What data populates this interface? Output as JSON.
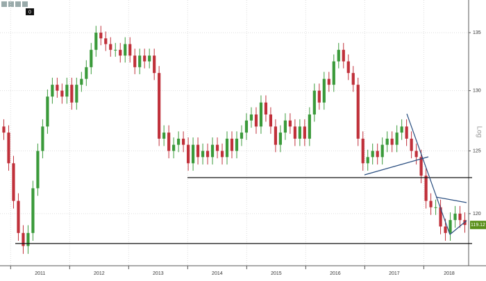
{
  "toolbar": {
    "badge": "0"
  },
  "chart_data": {
    "type": "candlestick",
    "y_label": "Log",
    "log_scale": true,
    "grid": true,
    "up_color": "#3a9a3a",
    "down_color": "#c0303a",
    "last_value": 119.12,
    "last_color": "#5a8f1a",
    "xlim": [
      2010.82,
      2018.76
    ],
    "xticks": [
      2011,
      2012,
      2013,
      2014,
      2015,
      2016,
      2017,
      2018
    ],
    "ylim": [
      116,
      137.9
    ],
    "yticks": [
      120,
      125,
      130,
      135
    ],
    "open": [
      127,
      126.5,
      124,
      121,
      118.5,
      117.5,
      118.5,
      122,
      125,
      127,
      129.5,
      130.5,
      130,
      129.5,
      130.5,
      129,
      130.5,
      131,
      132,
      133.5,
      135,
      134.5,
      134,
      133.5,
      133.5,
      133,
      134,
      133,
      132,
      133,
      132.5,
      133,
      131.5,
      126,
      126.5,
      125,
      125.5,
      126,
      125.5,
      124,
      125.5,
      124.5,
      125,
      124.5,
      125.5,
      125,
      124.5,
      126,
      125,
      126,
      126.5,
      127.5,
      128,
      127,
      129,
      128,
      127,
      125.5,
      126.5,
      127.5,
      127,
      126,
      127,
      126,
      128,
      130,
      129,
      131,
      130.5,
      132.5,
      133.5,
      132.5,
      131.5,
      130.5,
      126,
      124,
      124.5,
      125,
      124.5,
      125.5,
      126,
      125.5,
      126.5,
      127,
      126,
      125,
      124.5,
      123,
      121,
      120.5,
      120.5,
      119,
      118.5,
      119.5,
      120,
      119.5
    ],
    "high": [
      127.6,
      127.1,
      124.6,
      121.6,
      119.1,
      119.1,
      122.6,
      125.6,
      127.6,
      130.1,
      131.1,
      131.1,
      130.6,
      131.1,
      131.1,
      131.1,
      131.6,
      132.6,
      134.1,
      135.6,
      135.6,
      135.1,
      134.6,
      134.1,
      134.1,
      134.6,
      134.6,
      133.6,
      133.6,
      133.6,
      133.6,
      133.6,
      132.1,
      127.1,
      127.1,
      126.1,
      126.6,
      126.6,
      126.1,
      126.1,
      126.1,
      125.6,
      125.6,
      126.1,
      126.1,
      125.6,
      126.6,
      126.6,
      126.6,
      127.1,
      128.1,
      128.6,
      128.6,
      129.6,
      129.6,
      128.6,
      127.6,
      127.1,
      128.1,
      128.1,
      127.6,
      127.6,
      127.6,
      128.6,
      130.6,
      130.6,
      131.6,
      131.6,
      133.1,
      134.1,
      134.1,
      133.1,
      132.1,
      131.1,
      126.6,
      125.1,
      125.6,
      125.6,
      126.1,
      126.6,
      126.6,
      127.1,
      127.6,
      127.6,
      126.6,
      125.6,
      125.1,
      123.6,
      121.6,
      121.1,
      121.1,
      119.6,
      120.1,
      120.6,
      120.6,
      120.1
    ],
    "low": [
      125.9,
      123.4,
      120.4,
      117.9,
      116.9,
      116.9,
      117.9,
      121.4,
      124.4,
      126.4,
      128.9,
      129.4,
      128.9,
      128.9,
      128.4,
      128.4,
      129.9,
      130.4,
      131.4,
      132.9,
      133.9,
      133.4,
      132.9,
      132.9,
      132.4,
      132.4,
      132.4,
      131.4,
      131.4,
      131.9,
      131.9,
      130.9,
      125.4,
      125.4,
      124.4,
      124.4,
      124.9,
      124.9,
      123.4,
      123.4,
      123.9,
      123.9,
      123.9,
      123.9,
      124.4,
      123.9,
      123.9,
      124.4,
      124.4,
      125.4,
      125.9,
      126.9,
      126.4,
      126.4,
      127.4,
      126.4,
      124.9,
      124.9,
      125.9,
      126.4,
      125.4,
      125.4,
      125.4,
      125.4,
      127.4,
      128.4,
      128.4,
      129.9,
      129.9,
      131.9,
      131.9,
      130.9,
      129.9,
      125.4,
      123.4,
      123.4,
      123.9,
      123.9,
      123.9,
      124.9,
      124.9,
      124.9,
      125.9,
      125.4,
      124.4,
      123.9,
      122.4,
      120.4,
      119.9,
      119.9,
      118.4,
      117.9,
      117.9,
      118.9,
      118.9,
      118.52
    ],
    "close": [
      126.5,
      124,
      121,
      118.5,
      117.5,
      118.5,
      122,
      125,
      127,
      129.5,
      130.5,
      130,
      129.5,
      130.5,
      129,
      130.5,
      131,
      132,
      133.5,
      135,
      134.5,
      134,
      133.5,
      133.5,
      133,
      134,
      133,
      132,
      133,
      132.5,
      133,
      131.5,
      126,
      126.5,
      125,
      125.5,
      126,
      125.5,
      124,
      125.5,
      124.5,
      125,
      124.5,
      125.5,
      125,
      124.5,
      126,
      125,
      126,
      126.5,
      127.5,
      128,
      127,
      129,
      128,
      127,
      125.5,
      126.5,
      127.5,
      127,
      126,
      127,
      126,
      128,
      130,
      129,
      131,
      130.5,
      132.5,
      133.5,
      132.5,
      131.5,
      130.5,
      126,
      124,
      124.5,
      125,
      124.5,
      125.5,
      126,
      125.5,
      126.5,
      127,
      126,
      125,
      124.5,
      123,
      121,
      120.5,
      120.5,
      119,
      118.5,
      119.5,
      120,
      119.5,
      119.12
    ]
  }
}
